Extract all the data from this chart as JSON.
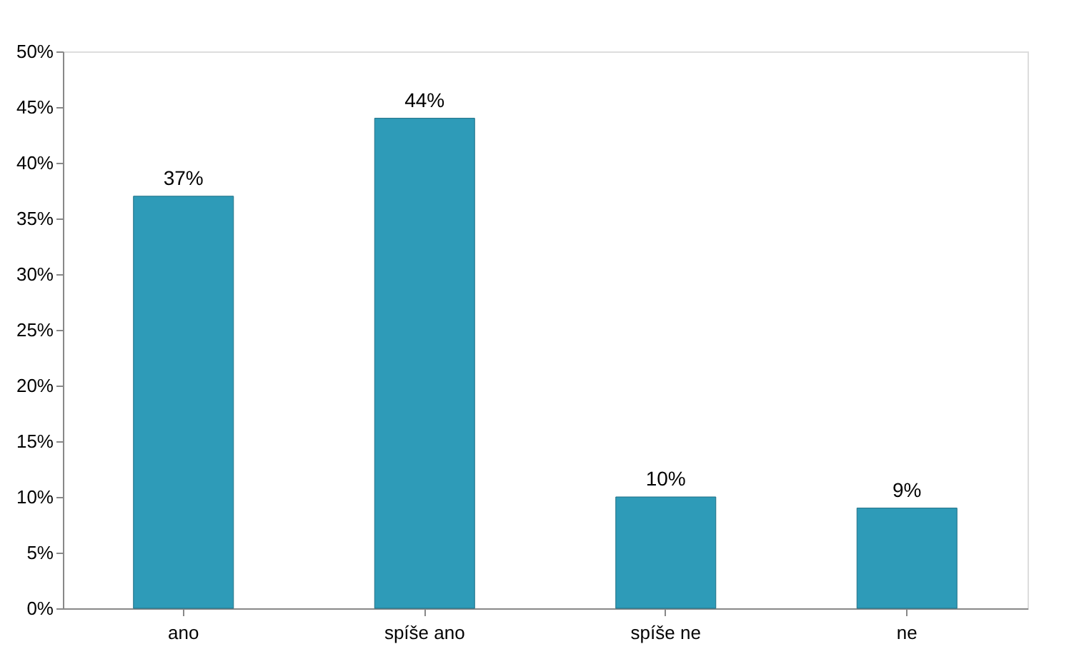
{
  "chart_data": {
    "type": "bar",
    "categories": [
      "ano",
      "spíše ano",
      "spíše ne",
      "ne"
    ],
    "values": [
      37,
      44,
      10,
      9
    ],
    "color": "#2e9bb8",
    "value_labels": [
      "37%",
      "44%",
      "10%",
      "9%"
    ],
    "ylim": [
      0,
      50
    ],
    "yticks": [
      {
        "value": 0,
        "label": "0%"
      },
      {
        "value": 5,
        "label": "5%"
      },
      {
        "value": 10,
        "label": "10%"
      },
      {
        "value": 15,
        "label": "15%"
      },
      {
        "value": 20,
        "label": "20%"
      },
      {
        "value": 25,
        "label": "25%"
      },
      {
        "value": 30,
        "label": "30%"
      },
      {
        "value": 35,
        "label": "35%"
      },
      {
        "value": 40,
        "label": "40%"
      },
      {
        "value": 45,
        "label": "45%"
      },
      {
        "value": 50,
        "label": "50%"
      }
    ],
    "grid": false
  }
}
